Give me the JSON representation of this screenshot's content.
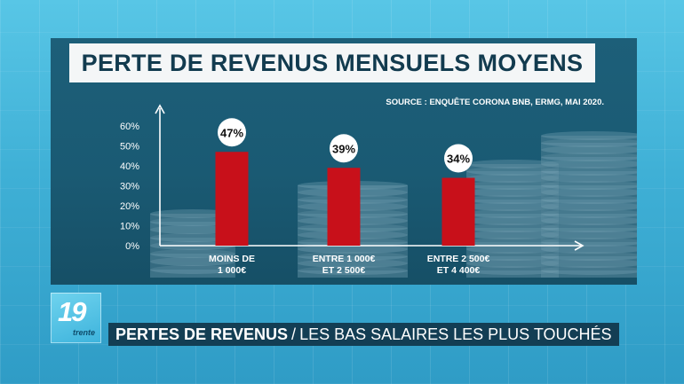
{
  "chart_data": {
    "type": "bar",
    "title": "PERTE DE REVENUS MENSUELS MOYENS",
    "source": "SOURCE : ENQUÊTE CORONA BNB, ERMG, MAI 2020.",
    "categories": [
      [
        "MOINS DE",
        "1 000€"
      ],
      [
        "ENTRE 1 000€",
        "ET 2 500€"
      ],
      [
        "ENTRE 2 500€",
        "ET 4 400€"
      ]
    ],
    "values": [
      47,
      39,
      34
    ],
    "value_labels": [
      "47%",
      "39%",
      "34%"
    ],
    "yticks": [
      "0%",
      "10%",
      "20%",
      "30%",
      "40%",
      "50%",
      "60%"
    ],
    "ylim": [
      0,
      60
    ],
    "bar_color": "#c8101a",
    "grid": false
  },
  "logo": {
    "number": "19",
    "sub": "trente"
  },
  "ticker": {
    "bold": "PERTES DE REVENUS",
    "separator": "/",
    "rest": "LES BAS SALAIRES LES PLUS TOUCHÉS"
  }
}
